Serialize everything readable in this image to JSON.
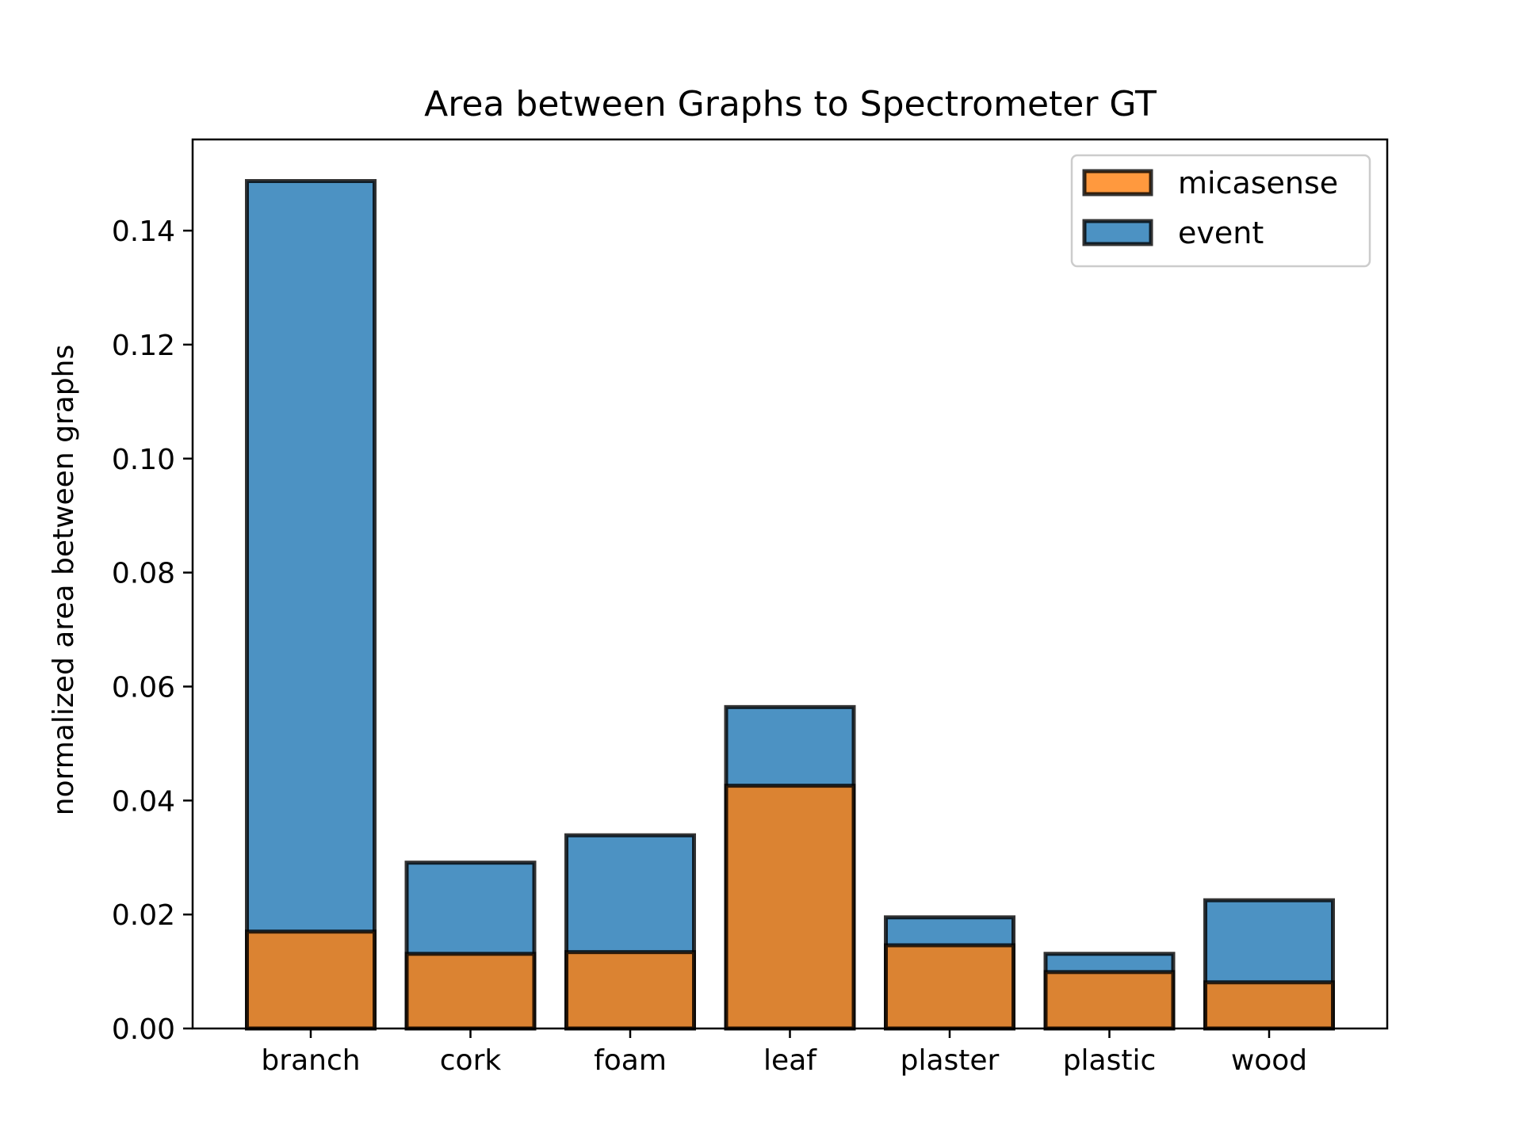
{
  "chart_data": {
    "type": "bar",
    "stacked": "overlay",
    "title": "Area between Graphs to Spectrometer GT",
    "xlabel": "",
    "ylabel": "normalized area between graphs",
    "categories": [
      "branch",
      "cork",
      "foam",
      "leaf",
      "plaster",
      "plastic",
      "wood"
    ],
    "ylim": [
      0,
      0.156
    ],
    "yticks": [
      0.0,
      0.02,
      0.04,
      0.06,
      0.08,
      0.1,
      0.12,
      0.14
    ],
    "ytick_labels": [
      "0.00",
      "0.02",
      "0.04",
      "0.06",
      "0.08",
      "0.10",
      "0.12",
      "0.14"
    ],
    "grid": false,
    "legend_position": "top-right",
    "series": [
      {
        "name": "event",
        "color": "#1f77b4",
        "values": [
          0.1487,
          0.0291,
          0.0339,
          0.0564,
          0.0195,
          0.0131,
          0.0225
        ]
      },
      {
        "name": "micasense",
        "color": "#ff7f0e",
        "values": [
          0.017,
          0.0131,
          0.0134,
          0.0426,
          0.0146,
          0.0099,
          0.0081
        ]
      }
    ],
    "legend_order": [
      "micasense",
      "event"
    ]
  }
}
